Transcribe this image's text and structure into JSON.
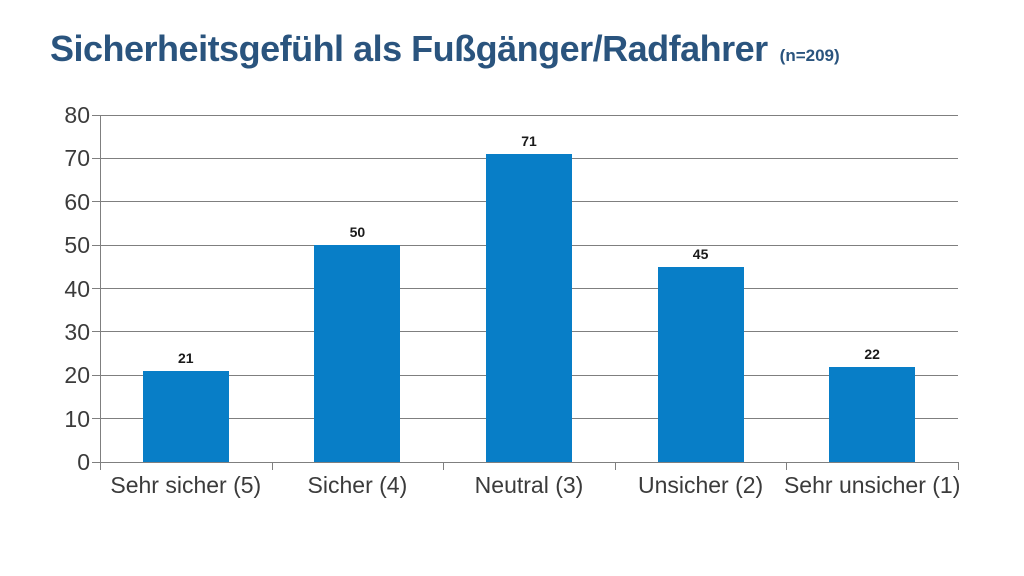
{
  "slide": {
    "title": "Sicherheitsgefühl als Fußgänger/Radfahrer",
    "sample_label": "(n=209)"
  },
  "chart_data": {
    "type": "bar",
    "title": "Sicherheitsgefühl als Fußgänger/Radfahrer",
    "subtitle": "(n=209)",
    "categories": [
      "Sehr sicher (5)",
      "Sicher (4)",
      "Neutral (3)",
      "Unsicher (2)",
      "Sehr unsicher (1)"
    ],
    "values": [
      21,
      50,
      71,
      45,
      22
    ],
    "value_labels": [
      "21",
      "50",
      "71",
      "45",
      "22"
    ],
    "xlabel": "",
    "ylabel": "",
    "ylim": [
      0,
      80
    ],
    "yticks": [
      0,
      10,
      20,
      30,
      40,
      50,
      60,
      70,
      80
    ],
    "grid": true,
    "legend_position": "none",
    "colors": {
      "bar": "#087ec7",
      "gridline": "#7f7f7f",
      "axis": "#7f7f7f",
      "tick_label": "#3b3b3b",
      "value_label": "#1a1a1a",
      "title": "#2a547e"
    }
  }
}
